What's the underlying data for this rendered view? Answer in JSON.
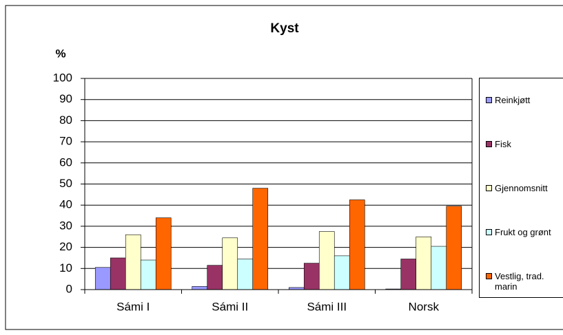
{
  "chart_data": {
    "type": "bar",
    "title": "Kyst",
    "y_label": "%",
    "categories": [
      "Sámi I",
      "Sámi II",
      "Sámi III",
      "Norsk"
    ],
    "series": [
      {
        "name": "Reinkjøtt",
        "color": "#9999ff",
        "values": [
          10.5,
          1.5,
          1,
          0.3
        ]
      },
      {
        "name": "Fisk",
        "color": "#993366",
        "values": [
          15,
          11.5,
          12.5,
          14.5
        ]
      },
      {
        "name": "Gjennomsnitt",
        "color": "#ffffcc",
        "values": [
          26,
          24.5,
          27.5,
          25
        ]
      },
      {
        "name": "Frukt og grønt",
        "color": "#ccffff",
        "values": [
          14,
          14.5,
          16,
          20.5
        ]
      },
      {
        "name": "Vestlig, trad. marin",
        "color": "#ff6600",
        "values": [
          34,
          48,
          42.5,
          39.5
        ]
      }
    ],
    "ylim": [
      0,
      100
    ],
    "yticks": [
      0,
      10,
      20,
      30,
      40,
      50,
      60,
      70,
      80,
      90,
      100
    ],
    "grid": true,
    "legend": "right"
  }
}
